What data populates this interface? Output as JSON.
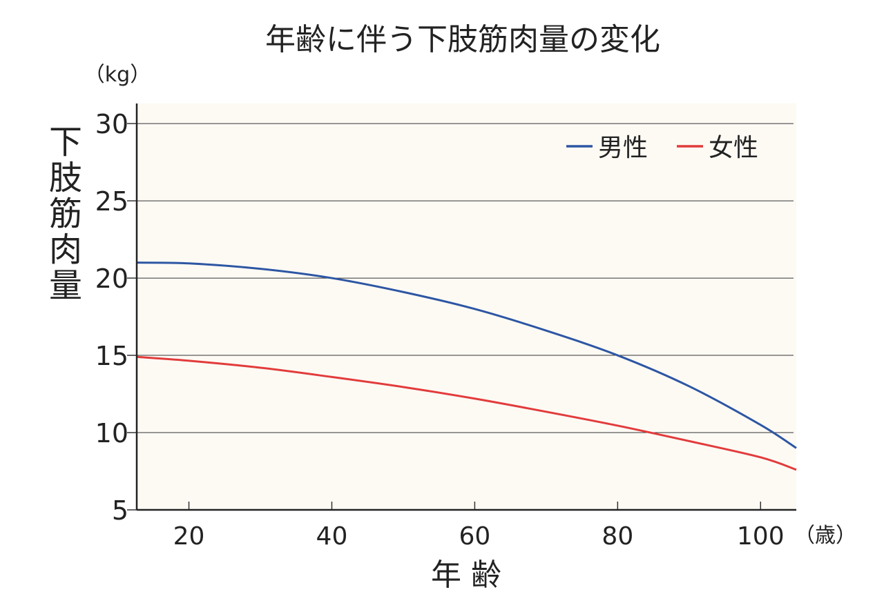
{
  "chart_data": {
    "type": "line",
    "title": "年齢に伴う下肢筋肉量の変化",
    "xlabel": "年 齢",
    "ylabel": "下肢筋肉量",
    "y_unit": "（kg）",
    "x_unit": "（歳）",
    "xlim": [
      12.7,
      105
    ],
    "ylim": [
      5,
      31.3
    ],
    "xticks": [
      20,
      40,
      60,
      80,
      100
    ],
    "yticks": [
      5,
      10,
      15,
      20,
      25,
      30
    ],
    "grid": "horizontal",
    "legend_position": "top-right",
    "series": [
      {
        "name": "男性",
        "color": "#2d56a3",
        "x": [
          12.7,
          20,
          30,
          40,
          50,
          60,
          70,
          80,
          90,
          100,
          105
        ],
        "y": [
          21.0,
          20.95,
          20.6,
          20.0,
          19.1,
          18.0,
          16.6,
          15.0,
          13.0,
          10.5,
          9.0
        ]
      },
      {
        "name": "女性",
        "color": "#e23b3b",
        "x": [
          12.7,
          20,
          30,
          40,
          50,
          60,
          70,
          80,
          90,
          100,
          105
        ],
        "y": [
          14.9,
          14.65,
          14.2,
          13.6,
          12.95,
          12.2,
          11.35,
          10.45,
          9.45,
          8.4,
          7.6
        ]
      }
    ]
  }
}
